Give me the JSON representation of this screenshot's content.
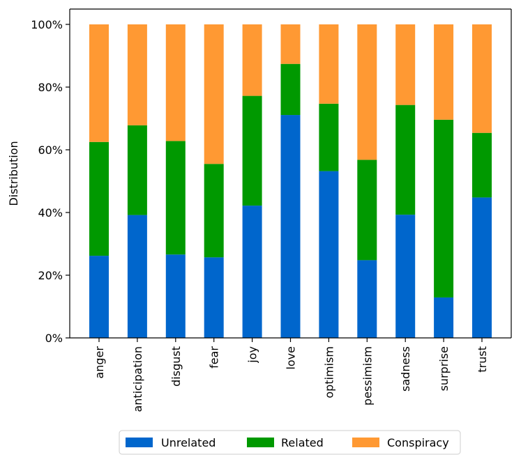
{
  "chart_data": {
    "type": "bar",
    "stacked": true,
    "normalized": true,
    "categories": [
      "anger",
      "anticipation",
      "disgust",
      "fear",
      "joy",
      "love",
      "optimism",
      "pessimism",
      "sadness",
      "surprise",
      "trust"
    ],
    "series": [
      {
        "name": "Unrelated",
        "color": "#0066cc",
        "values": [
          26.2,
          39.2,
          26.6,
          25.7,
          42.2,
          71.1,
          53.2,
          24.8,
          39.3,
          12.9,
          44.8
        ]
      },
      {
        "name": "Related",
        "color": "#009900",
        "values": [
          36.3,
          28.6,
          36.2,
          29.8,
          35.0,
          16.3,
          21.5,
          32.0,
          35.0,
          56.7,
          20.6
        ]
      },
      {
        "name": "Conspiracy",
        "color": "#ff9933",
        "values": [
          37.5,
          32.2,
          37.2,
          44.5,
          22.8,
          12.6,
          25.3,
          43.2,
          25.7,
          30.4,
          34.6
        ]
      }
    ],
    "title": "",
    "xlabel": "",
    "ylabel": "Distribution",
    "ylim": [
      0,
      100
    ],
    "yticks": [
      0,
      20,
      40,
      60,
      80,
      100
    ],
    "ytick_labels": [
      "0%",
      "20%",
      "40%",
      "60%",
      "80%",
      "100%"
    ],
    "legend_position": "bottom-center"
  }
}
